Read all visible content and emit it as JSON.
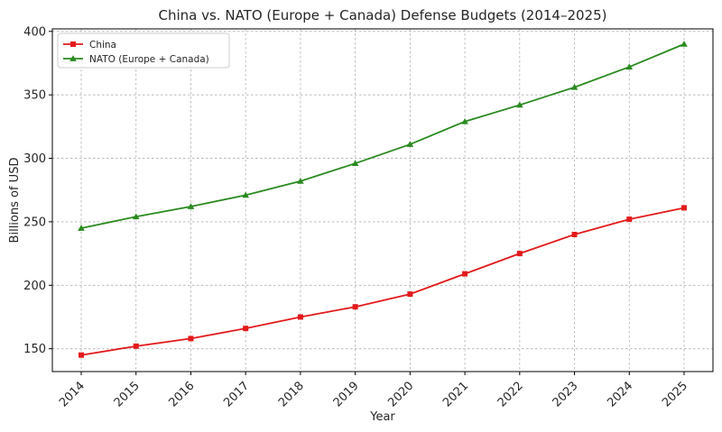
{
  "chart_data": {
    "type": "line",
    "title": "China vs. NATO (Europe + Canada) Defense Budgets (2014–2025)",
    "xlabel": "Year",
    "ylabel": "Billions of USD",
    "x": [
      "2014",
      "2015",
      "2016",
      "2017",
      "2018",
      "2019",
      "2020",
      "2021",
      "2022",
      "2023",
      "2024",
      "2025"
    ],
    "ylim": [
      132,
      402
    ],
    "yticks": [
      150,
      200,
      250,
      300,
      350,
      400
    ],
    "grid": true,
    "legend_position": "top-left",
    "series": [
      {
        "name": "China",
        "color": "#e31a1c",
        "marker": "square",
        "values": [
          145,
          152,
          158,
          166,
          175,
          183,
          193,
          209,
          225,
          240,
          252,
          261
        ]
      },
      {
        "name": "NATO (Europe + Canada)",
        "color": "#2a8a1f",
        "marker": "triangle",
        "values": [
          245,
          254,
          262,
          271,
          282,
          296,
          311,
          329,
          342,
          356,
          372,
          390
        ]
      }
    ]
  }
}
